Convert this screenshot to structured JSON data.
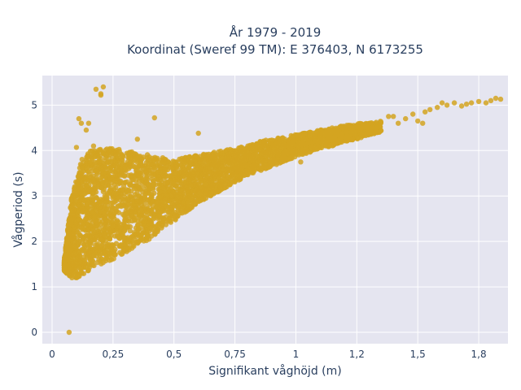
{
  "chart_data": {
    "type": "scatter",
    "title_line1": "År 1979 - 2019",
    "title_line2": "Koordinat (Sweref 99 TM): E 376403, N 6173255",
    "xlabel": "Signifikant våghöjd (m)",
    "ylabel": "Vågperiod (s)",
    "xlim": [
      -0.04,
      1.87
    ],
    "ylim": [
      -0.25,
      5.65
    ],
    "x_ticks": [
      0,
      0.25,
      0.5,
      0.75,
      1,
      1.25,
      1.5,
      1.75
    ],
    "x_tick_labels": [
      "0",
      "0,25",
      "0,5",
      "0,75",
      "1",
      "1,2",
      "1,5",
      "1,8"
    ],
    "y_ticks": [
      0,
      1,
      2,
      3,
      4,
      5
    ],
    "y_tick_labels": [
      "0",
      "1",
      "2",
      "3",
      "4",
      "5"
    ],
    "grid": true,
    "marker_color": "#d4a421",
    "plot_background": "#e5e5f0",
    "dense_region": [
      [
        0.05,
        1.35,
        1.6
      ],
      [
        0.08,
        1.2,
        3.0
      ],
      [
        0.12,
        1.2,
        3.8
      ],
      [
        0.16,
        1.4,
        4.0
      ],
      [
        0.2,
        1.5,
        4.05
      ],
      [
        0.25,
        1.6,
        4.05
      ],
      [
        0.3,
        1.75,
        4.0
      ],
      [
        0.35,
        1.9,
        3.95
      ],
      [
        0.4,
        2.05,
        3.9
      ],
      [
        0.45,
        2.25,
        3.85
      ],
      [
        0.5,
        2.45,
        3.8
      ],
      [
        0.55,
        2.65,
        3.85
      ],
      [
        0.6,
        2.85,
        3.9
      ],
      [
        0.65,
        3.0,
        3.95
      ],
      [
        0.7,
        3.15,
        4.0
      ],
      [
        0.75,
        3.3,
        4.05
      ],
      [
        0.8,
        3.45,
        4.1
      ],
      [
        0.85,
        3.55,
        4.2
      ],
      [
        0.9,
        3.65,
        4.25
      ],
      [
        0.95,
        3.75,
        4.3
      ],
      [
        1.0,
        3.85,
        4.35
      ],
      [
        1.05,
        3.95,
        4.4
      ],
      [
        1.1,
        4.05,
        4.45
      ],
      [
        1.15,
        4.1,
        4.5
      ],
      [
        1.2,
        4.2,
        4.55
      ],
      [
        1.25,
        4.25,
        4.6
      ],
      [
        1.3,
        4.35,
        4.6
      ],
      [
        1.35,
        4.4,
        4.65
      ]
    ],
    "sparse_points": [
      [
        0.07,
        0.0
      ],
      [
        0.18,
        5.35
      ],
      [
        0.2,
        5.25
      ],
      [
        0.21,
        5.4
      ],
      [
        0.2,
        5.22
      ],
      [
        0.11,
        4.7
      ],
      [
        0.12,
        4.6
      ],
      [
        0.15,
        4.6
      ],
      [
        0.14,
        4.45
      ],
      [
        0.1,
        4.07
      ],
      [
        0.17,
        4.1
      ],
      [
        0.2,
        4.0
      ],
      [
        0.35,
        4.25
      ],
      [
        0.42,
        4.72
      ],
      [
        0.6,
        4.38
      ],
      [
        0.84,
        4.15
      ],
      [
        0.88,
        4.05
      ],
      [
        1.02,
        3.75
      ],
      [
        1.4,
        4.75
      ],
      [
        1.45,
        4.7
      ],
      [
        1.5,
        4.65
      ],
      [
        1.52,
        4.6
      ],
      [
        1.48,
        4.8
      ],
      [
        1.55,
        4.9
      ],
      [
        1.58,
        4.95
      ],
      [
        1.62,
        5.0
      ],
      [
        1.65,
        5.05
      ],
      [
        1.68,
        4.98
      ],
      [
        1.7,
        5.02
      ],
      [
        1.72,
        5.05
      ],
      [
        1.75,
        5.08
      ],
      [
        1.78,
        5.05
      ],
      [
        1.8,
        5.1
      ],
      [
        1.82,
        5.15
      ],
      [
        1.84,
        5.13
      ],
      [
        1.6,
        5.05
      ],
      [
        1.42,
        4.6
      ],
      [
        1.38,
        4.75
      ],
      [
        1.53,
        4.85
      ]
    ]
  }
}
